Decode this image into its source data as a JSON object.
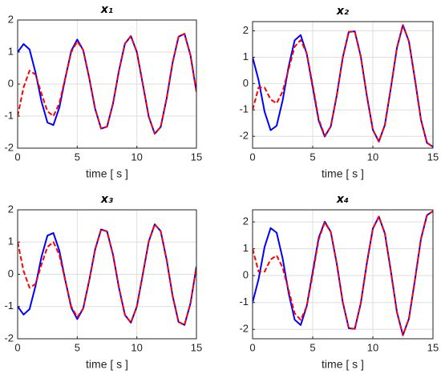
{
  "chart_data": [
    {
      "type": "line",
      "title": "x₁",
      "xlabel": "time [ s ]",
      "x": [
        0,
        0.5,
        1,
        1.5,
        2,
        2.5,
        3,
        3.5,
        4,
        4.5,
        5,
        5.5,
        6,
        6.5,
        7,
        7.5,
        8,
        8.5,
        9,
        9.5,
        10,
        10.5,
        11,
        11.5,
        12,
        12.5,
        13,
        13.5,
        14,
        14.5,
        15
      ],
      "xlim": [
        0,
        15
      ],
      "xticks": [
        0,
        5,
        10,
        15
      ],
      "ylim": [
        -2,
        2
      ],
      "yticks": [
        -2,
        -1,
        0,
        1,
        2
      ],
      "grid": true,
      "series": [
        {
          "color": "#0000ff",
          "dashed": false,
          "values": [
            1.0,
            1.25,
            1.08,
            0.36,
            -0.54,
            -1.2,
            -1.28,
            -0.73,
            0.19,
            1.04,
            1.39,
            1.06,
            0.2,
            -0.77,
            -1.39,
            -1.33,
            -0.61,
            0.42,
            1.26,
            1.5,
            1.0,
            0.0,
            -1.02,
            -1.55,
            -1.34,
            -0.45,
            0.67,
            1.48,
            1.57,
            0.9,
            -0.24
          ]
        },
        {
          "color": "#ff0000",
          "dashed": true,
          "values": [
            -1.0,
            -0.1,
            0.42,
            0.3,
            -0.3,
            -0.85,
            -1.0,
            -0.6,
            0.2,
            1.0,
            1.33,
            1.06,
            0.2,
            -0.77,
            -1.39,
            -1.33,
            -0.61,
            0.42,
            1.26,
            1.5,
            1.0,
            0.0,
            -1.02,
            -1.55,
            -1.34,
            -0.45,
            0.67,
            1.48,
            1.57,
            0.9,
            -0.24
          ]
        }
      ]
    },
    {
      "type": "line",
      "title": "x₂",
      "xlabel": "time [ s ]",
      "x": [
        0,
        0.5,
        1,
        1.5,
        2,
        2.5,
        3,
        3.5,
        4,
        4.5,
        5,
        5.5,
        6,
        6.5,
        7,
        7.5,
        8,
        8.5,
        9,
        9.5,
        10,
        10.5,
        11,
        11.5,
        12,
        12.5,
        13,
        13.5,
        14,
        14.5,
        15
      ],
      "xlim": [
        0,
        15
      ],
      "xticks": [
        0,
        5,
        10,
        15
      ],
      "ylim": [
        -2.45,
        2.35
      ],
      "yticks": [
        -2,
        -1,
        0,
        1,
        2
      ],
      "grid": true,
      "series": [
        {
          "color": "#0000ff",
          "dashed": false,
          "values": [
            1.0,
            0.13,
            -1.07,
            -1.77,
            -1.6,
            -0.64,
            0.65,
            1.64,
            1.84,
            1.14,
            -0.14,
            -1.41,
            -2.01,
            -1.63,
            -0.45,
            0.99,
            1.96,
            1.98,
            1.02,
            -0.46,
            -1.75,
            -2.2,
            -1.57,
            -0.16,
            1.35,
            2.22,
            1.6,
            0.16,
            -1.37,
            -2.25,
            -2.4
          ]
        },
        {
          "color": "#ff0000",
          "dashed": true,
          "values": [
            -1.0,
            -0.15,
            -0.15,
            -0.6,
            -0.75,
            -0.3,
            0.55,
            1.4,
            1.65,
            1.15,
            -0.05,
            -1.35,
            -1.98,
            -1.63,
            -0.45,
            0.99,
            1.96,
            1.98,
            1.02,
            -0.46,
            -1.75,
            -2.2,
            -1.57,
            -0.16,
            1.35,
            2.22,
            1.6,
            0.16,
            -1.37,
            -2.25,
            -2.4
          ]
        }
      ]
    },
    {
      "type": "line",
      "title": "x₃",
      "xlabel": "time [ s ]",
      "x": [
        0,
        0.5,
        1,
        1.5,
        2,
        2.5,
        3,
        3.5,
        4,
        4.5,
        5,
        5.5,
        6,
        6.5,
        7,
        7.5,
        8,
        8.5,
        9,
        9.5,
        10,
        10.5,
        11,
        11.5,
        12,
        12.5,
        13,
        13.5,
        14,
        14.5,
        15
      ],
      "xlim": [
        0,
        15
      ],
      "xticks": [
        0,
        5,
        10,
        15
      ],
      "ylim": [
        -2,
        2
      ],
      "yticks": [
        -2,
        -1,
        0,
        1,
        2
      ],
      "grid": true,
      "series": [
        {
          "color": "#0000ff",
          "dashed": false,
          "values": [
            -1.0,
            -1.25,
            -1.08,
            -0.36,
            0.54,
            1.2,
            1.28,
            0.73,
            -0.19,
            -1.04,
            -1.39,
            -1.06,
            -0.2,
            0.77,
            1.39,
            1.33,
            0.61,
            -0.42,
            -1.26,
            -1.5,
            -1.0,
            0.0,
            1.02,
            1.55,
            1.34,
            0.45,
            -0.67,
            -1.48,
            -1.57,
            -0.9,
            0.24
          ]
        },
        {
          "color": "#ff0000",
          "dashed": true,
          "values": [
            1.0,
            0.1,
            -0.42,
            -0.3,
            0.3,
            0.85,
            1.0,
            0.6,
            -0.2,
            -1.0,
            -1.33,
            -1.06,
            -0.2,
            0.77,
            1.39,
            1.33,
            0.61,
            -0.42,
            -1.26,
            -1.5,
            -1.0,
            0.0,
            1.02,
            1.55,
            1.34,
            0.45,
            -0.67,
            -1.48,
            -1.57,
            -0.9,
            0.24
          ]
        }
      ]
    },
    {
      "type": "line",
      "title": "x₄",
      "xlabel": "time [ s ]",
      "x": [
        0,
        0.5,
        1,
        1.5,
        2,
        2.5,
        3,
        3.5,
        4,
        4.5,
        5,
        5.5,
        6,
        6.5,
        7,
        7.5,
        8,
        8.5,
        9,
        9.5,
        10,
        10.5,
        11,
        11.5,
        12,
        12.5,
        13,
        13.5,
        14,
        14.5,
        15
      ],
      "xlim": [
        0,
        15
      ],
      "xticks": [
        0,
        5,
        10,
        15
      ],
      "ylim": [
        -2.35,
        2.45
      ],
      "yticks": [
        -2,
        -1,
        0,
        1,
        2
      ],
      "grid": true,
      "series": [
        {
          "color": "#0000ff",
          "dashed": false,
          "values": [
            -1.0,
            -0.13,
            1.07,
            1.77,
            1.6,
            0.64,
            -0.65,
            -1.64,
            -1.84,
            -1.14,
            0.14,
            1.41,
            2.01,
            1.63,
            0.45,
            -0.99,
            -1.96,
            -1.98,
            -1.02,
            0.46,
            1.75,
            2.2,
            1.57,
            0.16,
            -1.35,
            -2.22,
            -1.6,
            -0.16,
            1.37,
            2.25,
            2.4
          ]
        },
        {
          "color": "#ff0000",
          "dashed": true,
          "values": [
            1.0,
            0.15,
            0.15,
            0.6,
            0.75,
            0.3,
            -0.55,
            -1.4,
            -1.65,
            -1.15,
            0.05,
            1.35,
            1.98,
            1.63,
            0.45,
            -0.99,
            -1.96,
            -1.98,
            -1.02,
            0.46,
            1.75,
            2.2,
            1.57,
            0.16,
            -1.35,
            -2.22,
            -1.6,
            -0.16,
            1.37,
            2.25,
            2.4
          ]
        }
      ]
    }
  ]
}
